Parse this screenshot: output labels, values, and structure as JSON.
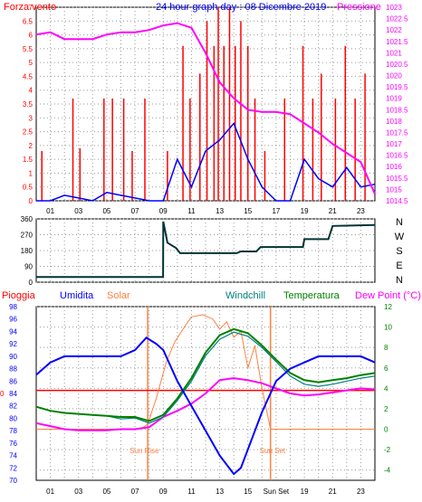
{
  "wind_panel": {
    "title": "24 hour graph day : 08 Dicembre 2019",
    "left_label": "Forza vento",
    "right_label": "Pressione",
    "left_ticks": [
      "7",
      "6.5",
      "6",
      "5.5",
      "5",
      "4.5",
      "4",
      "3.5",
      "3",
      "2.5",
      "2",
      "1.5",
      "1",
      "0.5",
      "0"
    ],
    "right_ticks": [
      "1023",
      "1022.5",
      "1022",
      "1021.5",
      "1021",
      "1020.5",
      "1020",
      "1019.5",
      "1019",
      "1018.5",
      "1018",
      "1017.5",
      "1017",
      "1016.5",
      "1016",
      "1015.5",
      "1015",
      "1014.5"
    ],
    "x_ticks": [
      "01",
      "03",
      "05",
      "07",
      "09",
      "11",
      "13",
      "15",
      "17",
      "19",
      "21",
      "23"
    ],
    "colors": {
      "gust": "#ff0000",
      "wind": "#0000ff",
      "pressure": "#ff00ff"
    }
  },
  "direction_panel": {
    "y_ticks": [
      "360",
      "270",
      "180",
      "90",
      "0"
    ],
    "compass": [
      "N",
      "W",
      "S",
      "E",
      "N"
    ],
    "color": "#003333"
  },
  "main_panel": {
    "legend": {
      "rain": "Pioggia",
      "humidity": "Umidita",
      "solar": "Solar",
      "windchill": "Windchill",
      "temperature": "Temperatura",
      "dewpoint": "Dew Point (°C)"
    },
    "left_ticks": [
      "98",
      "96",
      "94",
      "92",
      "90",
      "88",
      "86",
      "84",
      "82",
      "80",
      "78",
      "76",
      "74",
      "72",
      "70"
    ],
    "rain_value": "0",
    "right_ticks": [
      "12",
      "10",
      "8",
      "6",
      "4",
      "2",
      "0",
      "-2",
      "-4"
    ],
    "x_ticks": [
      "01",
      "03",
      "05",
      "07",
      "09",
      "11",
      "13",
      "15",
      "Sun Set",
      "19",
      "21",
      "23"
    ],
    "sunrise_label": "Sun Rise",
    "sunset_label": "Sun Set",
    "colors": {
      "rain": "#ff0000",
      "humidity": "#0000ff",
      "solar": "#ff8040",
      "windchill": "#008080",
      "temperature": "#008000",
      "dewpoint": "#ff00ff"
    }
  },
  "chart_data": [
    {
      "type": "line",
      "title": "24 hour graph day : 08 Dicembre 2019",
      "ylabel": "Forza vento",
      "y2label": "Pressione",
      "xlim": [
        0,
        24
      ],
      "ylim": [
        0,
        7
      ],
      "y2lim": [
        1014.5,
        1023
      ],
      "grid": true,
      "series": [
        {
          "name": "Forza vento",
          "axis": "left",
          "x": [
            0,
            1,
            2,
            3,
            4,
            5,
            6,
            7,
            8,
            9,
            10,
            11,
            12,
            13,
            14,
            15,
            16,
            17,
            18,
            19,
            20,
            21,
            22,
            23,
            24
          ],
          "y": [
            0,
            0,
            0.2,
            0.1,
            0,
            0.3,
            0.2,
            0.1,
            0,
            0,
            1.5,
            0.5,
            1.8,
            2.2,
            2.8,
            1.5,
            0.5,
            0,
            0,
            1.5,
            0.8,
            0.5,
            1.2,
            0.5,
            0.6
          ]
        },
        {
          "name": "Pressione",
          "axis": "right",
          "x": [
            0,
            1,
            2,
            3,
            4,
            5,
            6,
            7,
            8,
            9,
            10,
            11,
            12,
            13,
            14,
            15,
            16,
            17,
            18,
            19,
            20,
            21,
            22,
            23,
            24
          ],
          "y": [
            1021.8,
            1021.9,
            1021.6,
            1021.6,
            1021.6,
            1021.8,
            1021.9,
            1021.9,
            1022.0,
            1022.2,
            1022.3,
            1022.1,
            1021.0,
            1019.7,
            1019.0,
            1018.5,
            1018.4,
            1018.4,
            1018.3,
            1017.9,
            1017.5,
            1017.0,
            1016.6,
            1016.2,
            1014.8
          ]
        }
      ],
      "gust_bars": [
        {
          "x": 0.4,
          "y": 1.8
        },
        {
          "x": 2.6,
          "y": 3.7
        },
        {
          "x": 3.1,
          "y": 1.9
        },
        {
          "x": 4.8,
          "y": 3.7
        },
        {
          "x": 5.4,
          "y": 3.7
        },
        {
          "x": 6.2,
          "y": 3.7
        },
        {
          "x": 6.8,
          "y": 1.8
        },
        {
          "x": 7.7,
          "y": 3.7
        },
        {
          "x": 9.3,
          "y": 1.8
        },
        {
          "x": 10.4,
          "y": 5.6
        },
        {
          "x": 10.9,
          "y": 3.7
        },
        {
          "x": 11.6,
          "y": 4.6
        },
        {
          "x": 12.1,
          "y": 6.5
        },
        {
          "x": 12.6,
          "y": 5.6
        },
        {
          "x": 12.9,
          "y": 7.0
        },
        {
          "x": 13.3,
          "y": 5.6
        },
        {
          "x": 13.7,
          "y": 7.0
        },
        {
          "x": 14.1,
          "y": 5.6
        },
        {
          "x": 14.5,
          "y": 6.5
        },
        {
          "x": 15.0,
          "y": 5.6
        },
        {
          "x": 15.5,
          "y": 3.7
        },
        {
          "x": 16.2,
          "y": 1.8
        },
        {
          "x": 17.6,
          "y": 3.7
        },
        {
          "x": 18.9,
          "y": 5.6
        },
        {
          "x": 19.6,
          "y": 3.7
        },
        {
          "x": 20.2,
          "y": 4.6
        },
        {
          "x": 21.2,
          "y": 3.7
        },
        {
          "x": 21.9,
          "y": 5.6
        },
        {
          "x": 22.6,
          "y": 3.7
        },
        {
          "x": 23.3,
          "y": 4.6
        }
      ]
    },
    {
      "type": "line",
      "title": "",
      "ylabel": "",
      "xlim": [
        0,
        24
      ],
      "ylim": [
        0,
        360
      ],
      "grid": true,
      "series": [
        {
          "name": "",
          "x": [
            0,
            8.99,
            9.0,
            9.3,
            9.9,
            10.2,
            14.2,
            14.5,
            15.6,
            15.9,
            18.9,
            19.0,
            20.7,
            21.0,
            24
          ],
          "y": [
            30,
            30,
            345,
            225,
            195,
            165,
            165,
            175,
            175,
            200,
            200,
            245,
            245,
            320,
            325
          ]
        }
      ]
    },
    {
      "type": "line",
      "title": "",
      "ylabel": "Umidita",
      "y2label": "Dew Point (°C)",
      "xlim": [
        0,
        24
      ],
      "ylim": [
        70,
        98
      ],
      "y2lim": [
        -5,
        12
      ],
      "grid": true,
      "annotations": [
        "Sun Rise",
        "Sun Set"
      ],
      "series": [
        {
          "name": "Umidita",
          "axis": "left",
          "x": [
            0,
            1,
            2,
            3,
            4,
            5,
            6,
            7,
            7.8,
            8.5,
            9,
            10,
            11,
            12,
            13,
            14,
            14.5,
            15,
            16,
            17,
            18,
            19,
            20,
            21,
            22,
            23,
            24
          ],
          "y": [
            87,
            89,
            90,
            90,
            90,
            90,
            90,
            91,
            93,
            92,
            91,
            86,
            82,
            78,
            74,
            71,
            72,
            75,
            81,
            86,
            88,
            89,
            90,
            90,
            90,
            90,
            89
          ]
        },
        {
          "name": "Temperatura",
          "axis": "right",
          "x": [
            0,
            1,
            2,
            3,
            4,
            5,
            6,
            7,
            8,
            9,
            10,
            11,
            12,
            13,
            14,
            15,
            16,
            17,
            18,
            19,
            20,
            21,
            22,
            23,
            24
          ],
          "y": [
            2.2,
            1.8,
            1.6,
            1.5,
            1.4,
            1.3,
            1.2,
            1.2,
            0.8,
            1.4,
            3.0,
            5.0,
            7.5,
            9.2,
            9.8,
            9.4,
            8.2,
            6.8,
            5.5,
            4.8,
            4.6,
            4.8,
            5.0,
            5.3,
            5.5
          ]
        },
        {
          "name": "Windchill",
          "axis": "right",
          "x": [
            0,
            1,
            2,
            3,
            4,
            5,
            6,
            7,
            8,
            9,
            10,
            11,
            12,
            13,
            14,
            15,
            16,
            17,
            18,
            19,
            20,
            21,
            22,
            23,
            24
          ],
          "y": [
            2.2,
            1.8,
            1.6,
            1.5,
            1.4,
            1.3,
            1.0,
            1.1,
            0.6,
            1.2,
            2.8,
            4.7,
            7.2,
            8.8,
            9.5,
            9.1,
            8.0,
            6.6,
            5.2,
            4.4,
            4.2,
            4.4,
            4.7,
            5.0,
            5.2
          ]
        },
        {
          "name": "Dew Point (°C)",
          "axis": "right",
          "x": [
            0,
            1,
            2,
            3,
            4,
            5,
            6,
            7,
            8,
            9,
            10,
            11,
            12,
            13,
            14,
            15,
            16,
            17,
            18,
            19,
            20,
            21,
            22,
            23,
            24
          ],
          "y": [
            0.6,
            0.3,
            0.0,
            -0.1,
            -0.1,
            -0.1,
            0.0,
            0.0,
            0.2,
            1.2,
            1.8,
            2.5,
            3.5,
            4.8,
            5.0,
            4.8,
            4.5,
            4.0,
            3.5,
            3.3,
            3.4,
            3.6,
            3.8,
            4.0,
            3.9
          ]
        },
        {
          "name": "Solar",
          "axis": "right",
          "x": [
            0,
            7.4,
            7.9,
            8.5,
            9.2,
            9.8,
            10.5,
            11,
            11.8,
            12.5,
            13,
            13.5,
            14,
            14.5,
            15.0,
            15.5,
            16.0,
            16.6,
            24
          ],
          "y": [
            0,
            0,
            0.5,
            3.0,
            6.5,
            8.5,
            10.0,
            11.0,
            11.2,
            10.8,
            9.8,
            10.5,
            9.0,
            9.6,
            6.0,
            8.2,
            4.0,
            0.0,
            0
          ]
        },
        {
          "name": "Pioggia",
          "axis": "left",
          "x": [
            0,
            24
          ],
          "y": [
            84.5,
            84.5
          ]
        }
      ]
    }
  ]
}
